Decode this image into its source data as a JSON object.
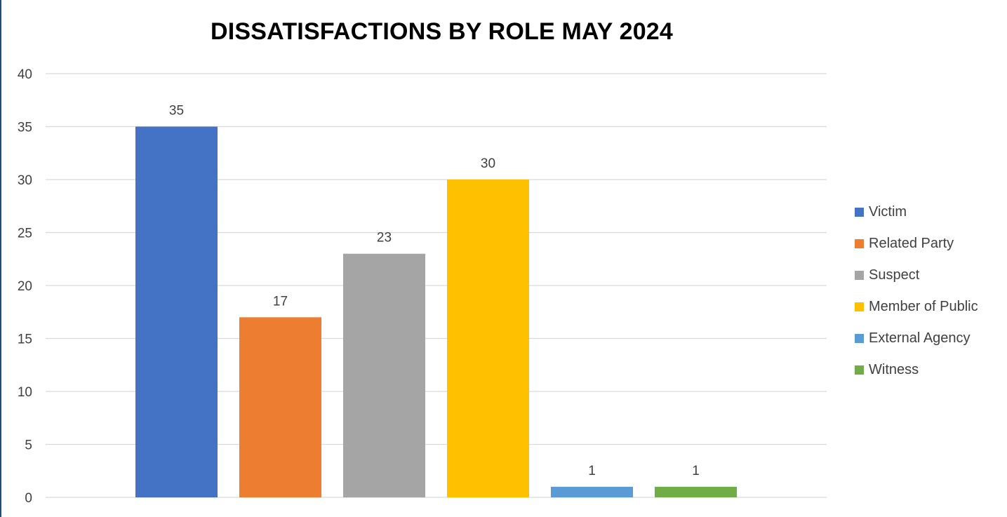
{
  "chart_data": {
    "type": "bar",
    "title": "DISSATISFACTIONS BY ROLE MAY 2024",
    "xlabel": "",
    "ylabel": "",
    "ylim": [
      0,
      40
    ],
    "yticks": [
      0,
      5,
      10,
      15,
      20,
      25,
      30,
      35,
      40
    ],
    "grid": true,
    "legend_position": "right",
    "data_labels": true,
    "series": [
      {
        "name": "Victim",
        "value": 35,
        "color": "#4472c4"
      },
      {
        "name": "Related Party",
        "value": 17,
        "color": "#ed7d31"
      },
      {
        "name": "Suspect",
        "value": 23,
        "color": "#a5a5a5"
      },
      {
        "name": "Member of Public",
        "value": 30,
        "color": "#ffc000"
      },
      {
        "name": "External Agency",
        "value": 1,
        "color": "#5b9bd5"
      },
      {
        "name": "Witness",
        "value": 1,
        "color": "#70ad47"
      }
    ]
  },
  "style": {
    "gridline_color": "#d9d9d9",
    "frame_accent_color": "#1f4e79"
  }
}
